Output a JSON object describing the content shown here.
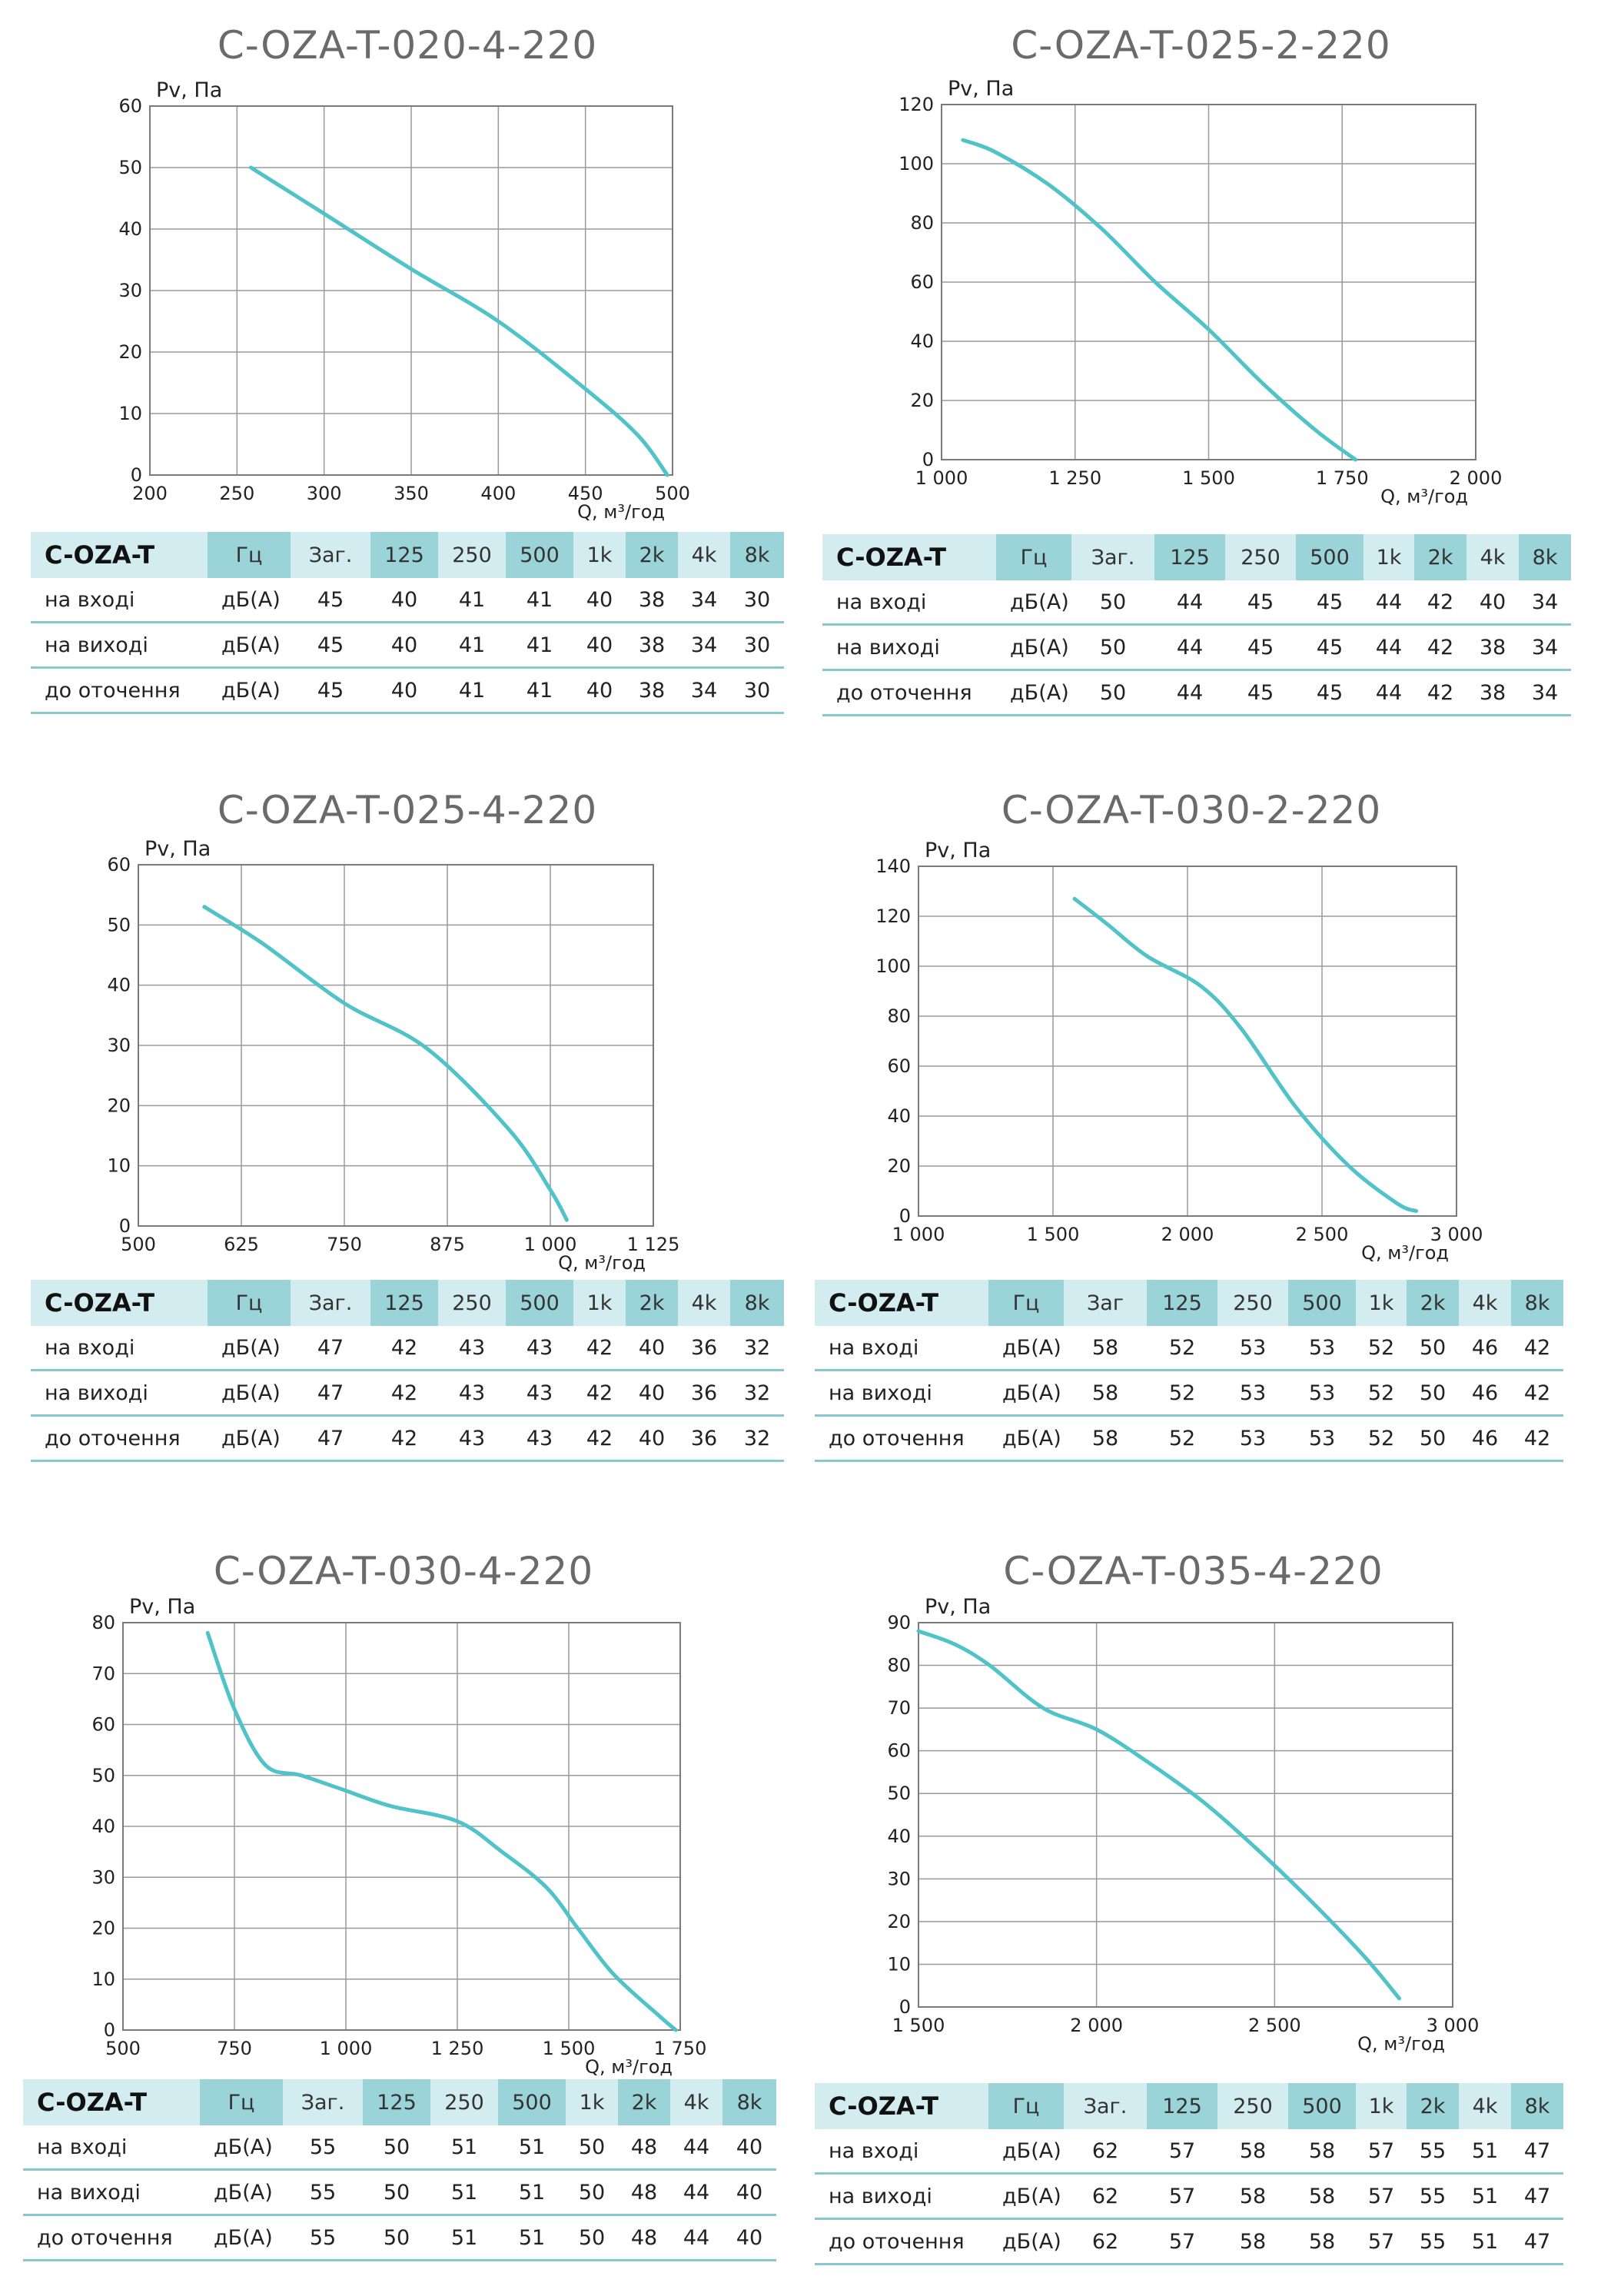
{
  "chart_data": [
    {
      "type": "line",
      "title": "C-OZA-T-020-4-220",
      "ylabel": "Pv, Па",
      "xlabel": "Q, м³/год",
      "xlim": [
        200,
        500
      ],
      "ylim": [
        0,
        60
      ],
      "xticks": [
        200,
        250,
        300,
        350,
        400,
        450,
        500
      ],
      "xtick_labels": [
        "200",
        "250",
        "300",
        "350",
        "400",
        "450",
        "500"
      ],
      "yticks": [
        0,
        10,
        20,
        30,
        40,
        50,
        60
      ],
      "grid": true,
      "series": [
        {
          "values": [
            [
              258,
              50
            ],
            [
              300,
              42.5
            ],
            [
              350,
              33.5
            ],
            [
              400,
              25
            ],
            [
              450,
              14
            ],
            [
              480,
              6.5
            ],
            [
              497,
              0
            ]
          ]
        }
      ]
    },
    {
      "type": "line",
      "title": "C-OZA-T-025-2-220",
      "ylabel": "Pv, Па",
      "xlabel": "Q, м³/год",
      "xlim": [
        1000,
        2000
      ],
      "ylim": [
        0,
        120
      ],
      "xticks": [
        1000,
        1250,
        1500,
        1750,
        2000
      ],
      "xtick_labels": [
        "1 000",
        "1 250",
        "1 500",
        "1 750",
        "2 000"
      ],
      "yticks": [
        0,
        20,
        40,
        60,
        80,
        100,
        120
      ],
      "grid": true,
      "series": [
        {
          "values": [
            [
              1040,
              108
            ],
            [
              1100,
              104
            ],
            [
              1200,
              93
            ],
            [
              1300,
              78
            ],
            [
              1400,
              60
            ],
            [
              1500,
              44
            ],
            [
              1600,
              26
            ],
            [
              1700,
              10
            ],
            [
              1775,
              0
            ]
          ]
        }
      ]
    },
    {
      "type": "line",
      "title": "C-OZA-T-025-4-220",
      "ylabel": "Pv, Па",
      "xlabel": "Q, м³/год",
      "xlim": [
        500,
        1125
      ],
      "ylim": [
        0,
        60
      ],
      "xticks": [
        500,
        625,
        750,
        875,
        1000,
        1125
      ],
      "xtick_labels": [
        "500",
        "625",
        "750",
        "875",
        "1 000",
        "1 125"
      ],
      "yticks": [
        0,
        10,
        20,
        30,
        40,
        50,
        60
      ],
      "grid": true,
      "series": [
        {
          "values": [
            [
              580,
              53
            ],
            [
              650,
              47
            ],
            [
              750,
              37
            ],
            [
              850,
              29.5
            ],
            [
              950,
              16
            ],
            [
              1000,
              6
            ],
            [
              1020,
              1
            ]
          ]
        }
      ]
    },
    {
      "type": "line",
      "title": "C-OZA-T-030-2-220",
      "ylabel": "Pv, Па",
      "xlabel": "Q, м³/год",
      "xlim": [
        1000,
        3000
      ],
      "ylim": [
        0,
        140
      ],
      "xticks": [
        1000,
        1500,
        2000,
        2500,
        3000
      ],
      "xtick_labels": [
        "1 000",
        "1 500",
        "2 000",
        "2 500",
        "3 000"
      ],
      "yticks": [
        0,
        20,
        40,
        60,
        80,
        100,
        120,
        140
      ],
      "grid": true,
      "series": [
        {
          "values": [
            [
              1580,
              127
            ],
            [
              1700,
              117
            ],
            [
              1850,
              104
            ],
            [
              2050,
              92
            ],
            [
              2200,
              75
            ],
            [
              2400,
              44
            ],
            [
              2600,
              20
            ],
            [
              2780,
              5
            ],
            [
              2850,
              2
            ]
          ]
        }
      ]
    },
    {
      "type": "line",
      "title": "C-OZA-T-030-4-220",
      "ylabel": "Pv, Па",
      "xlabel": "Q, м³/год",
      "xlim": [
        500,
        1750
      ],
      "ylim": [
        0,
        80
      ],
      "xticks": [
        500,
        750,
        1000,
        1250,
        1500,
        1750
      ],
      "xtick_labels": [
        "500",
        "750",
        "1 000",
        "1 250",
        "1 500",
        "1 750"
      ],
      "yticks": [
        0,
        10,
        20,
        30,
        40,
        50,
        60,
        70,
        80
      ],
      "grid": true,
      "series": [
        {
          "values": [
            [
              690,
              78
            ],
            [
              750,
              63
            ],
            [
              820,
              52
            ],
            [
              900,
              50
            ],
            [
              1000,
              47
            ],
            [
              1100,
              44
            ],
            [
              1250,
              41
            ],
            [
              1350,
              35
            ],
            [
              1450,
              28
            ],
            [
              1520,
              20
            ],
            [
              1600,
              11
            ],
            [
              1700,
              3
            ],
            [
              1740,
              0
            ]
          ]
        }
      ]
    },
    {
      "type": "line",
      "title": "C-OZA-T-035-4-220",
      "ylabel": "Pv, Па",
      "xlabel": "Q, м³/год",
      "xlim": [
        1500,
        3000
      ],
      "ylim": [
        0,
        90
      ],
      "xticks": [
        1500,
        2000,
        2500,
        3000
      ],
      "xtick_labels": [
        "1 500",
        "2 000",
        "2 500",
        "3 000"
      ],
      "yticks": [
        0,
        10,
        20,
        30,
        40,
        50,
        60,
        70,
        80,
        90
      ],
      "grid": true,
      "series": [
        {
          "values": [
            [
              1500,
              88
            ],
            [
              1600,
              85
            ],
            [
              1700,
              80
            ],
            [
              1850,
              70
            ],
            [
              2000,
              65
            ],
            [
              2150,
              57
            ],
            [
              2300,
              48
            ],
            [
              2450,
              37
            ],
            [
              2600,
              25
            ],
            [
              2750,
              12
            ],
            [
              2850,
              2
            ]
          ]
        }
      ]
    }
  ],
  "tables": [
    {
      "model": "C-OZA-T",
      "headers": [
        "Гц",
        "Заг.",
        "125",
        "250",
        "500",
        "1k",
        "2k",
        "4k",
        "8k"
      ],
      "rows": [
        {
          "label": "на вході",
          "unit": "дБ(A)",
          "values": [
            "45",
            "40",
            "41",
            "41",
            "40",
            "38",
            "34",
            "30"
          ]
        },
        {
          "label": "на виході",
          "unit": "дБ(A)",
          "values": [
            "45",
            "40",
            "41",
            "41",
            "40",
            "38",
            "34",
            "30"
          ]
        },
        {
          "label": "до оточення",
          "unit": "дБ(A)",
          "values": [
            "45",
            "40",
            "41",
            "41",
            "40",
            "38",
            "34",
            "30"
          ]
        }
      ]
    },
    {
      "model": "C-OZA-T",
      "headers": [
        "Гц",
        "Заг.",
        "125",
        "250",
        "500",
        "1k",
        "2k",
        "4k",
        "8k"
      ],
      "rows": [
        {
          "label": "на вході",
          "unit": "дБ(A)",
          "values": [
            "50",
            "44",
            "45",
            "45",
            "44",
            "42",
            "40",
            "34"
          ]
        },
        {
          "label": "на виході",
          "unit": "дБ(A)",
          "values": [
            "50",
            "44",
            "45",
            "45",
            "44",
            "42",
            "38",
            "34"
          ]
        },
        {
          "label": "до оточення",
          "unit": "дБ(A)",
          "values": [
            "50",
            "44",
            "45",
            "45",
            "44",
            "42",
            "38",
            "34"
          ]
        }
      ]
    },
    {
      "model": "C-OZA-T",
      "headers": [
        "Гц",
        "Заг.",
        "125",
        "250",
        "500",
        "1k",
        "2k",
        "4k",
        "8k"
      ],
      "rows": [
        {
          "label": "на вході",
          "unit": "дБ(A)",
          "values": [
            "47",
            "42",
            "43",
            "43",
            "42",
            "40",
            "36",
            "32"
          ]
        },
        {
          "label": "на виході",
          "unit": "дБ(A)",
          "values": [
            "47",
            "42",
            "43",
            "43",
            "42",
            "40",
            "36",
            "32"
          ]
        },
        {
          "label": "до оточення",
          "unit": "дБ(A)",
          "values": [
            "47",
            "42",
            "43",
            "43",
            "42",
            "40",
            "36",
            "32"
          ]
        }
      ]
    },
    {
      "model": "C-OZA-T",
      "headers": [
        "Гц",
        "Заг",
        "125",
        "250",
        "500",
        "1k",
        "2k",
        "4k",
        "8k"
      ],
      "rows": [
        {
          "label": "на вході",
          "unit": "дБ(A)",
          "values": [
            "58",
            "52",
            "53",
            "53",
            "52",
            "50",
            "46",
            "42"
          ]
        },
        {
          "label": "на виході",
          "unit": "дБ(A)",
          "values": [
            "58",
            "52",
            "53",
            "53",
            "52",
            "50",
            "46",
            "42"
          ]
        },
        {
          "label": "до оточення",
          "unit": "дБ(A)",
          "values": [
            "58",
            "52",
            "53",
            "53",
            "52",
            "50",
            "46",
            "42"
          ]
        }
      ]
    },
    {
      "model": "C-OZA-T",
      "headers": [
        "Гц",
        "Заг.",
        "125",
        "250",
        "500",
        "1k",
        "2k",
        "4k",
        "8k"
      ],
      "rows": [
        {
          "label": "на вході",
          "unit": "дБ(A)",
          "values": [
            "55",
            "50",
            "51",
            "51",
            "50",
            "48",
            "44",
            "40"
          ]
        },
        {
          "label": "на виході",
          "unit": "дБ(A)",
          "values": [
            "55",
            "50",
            "51",
            "51",
            "50",
            "48",
            "44",
            "40"
          ]
        },
        {
          "label": "до оточення",
          "unit": "дБ(A)",
          "values": [
            "55",
            "50",
            "51",
            "51",
            "50",
            "48",
            "44",
            "40"
          ]
        }
      ]
    },
    {
      "model": "C-OZA-T",
      "headers": [
        "Гц",
        "Заг.",
        "125",
        "250",
        "500",
        "1k",
        "2k",
        "4k",
        "8k"
      ],
      "rows": [
        {
          "label": "на вході",
          "unit": "дБ(A)",
          "values": [
            "62",
            "57",
            "58",
            "58",
            "57",
            "55",
            "51",
            "47"
          ]
        },
        {
          "label": "на виході",
          "unit": "дБ(A)",
          "values": [
            "62",
            "57",
            "58",
            "58",
            "57",
            "55",
            "51",
            "47"
          ]
        },
        {
          "label": "до оточення",
          "unit": "дБ(A)",
          "values": [
            "62",
            "57",
            "58",
            "58",
            "57",
            "55",
            "51",
            "47"
          ]
        }
      ]
    }
  ],
  "colors": {
    "curve": "#4fc3c8",
    "grid": "#9a9a9a",
    "header_light": "#d2ecef",
    "header_dark": "#9ad4d9",
    "rule": "#86c9d0",
    "title": "#6a6a6a"
  }
}
